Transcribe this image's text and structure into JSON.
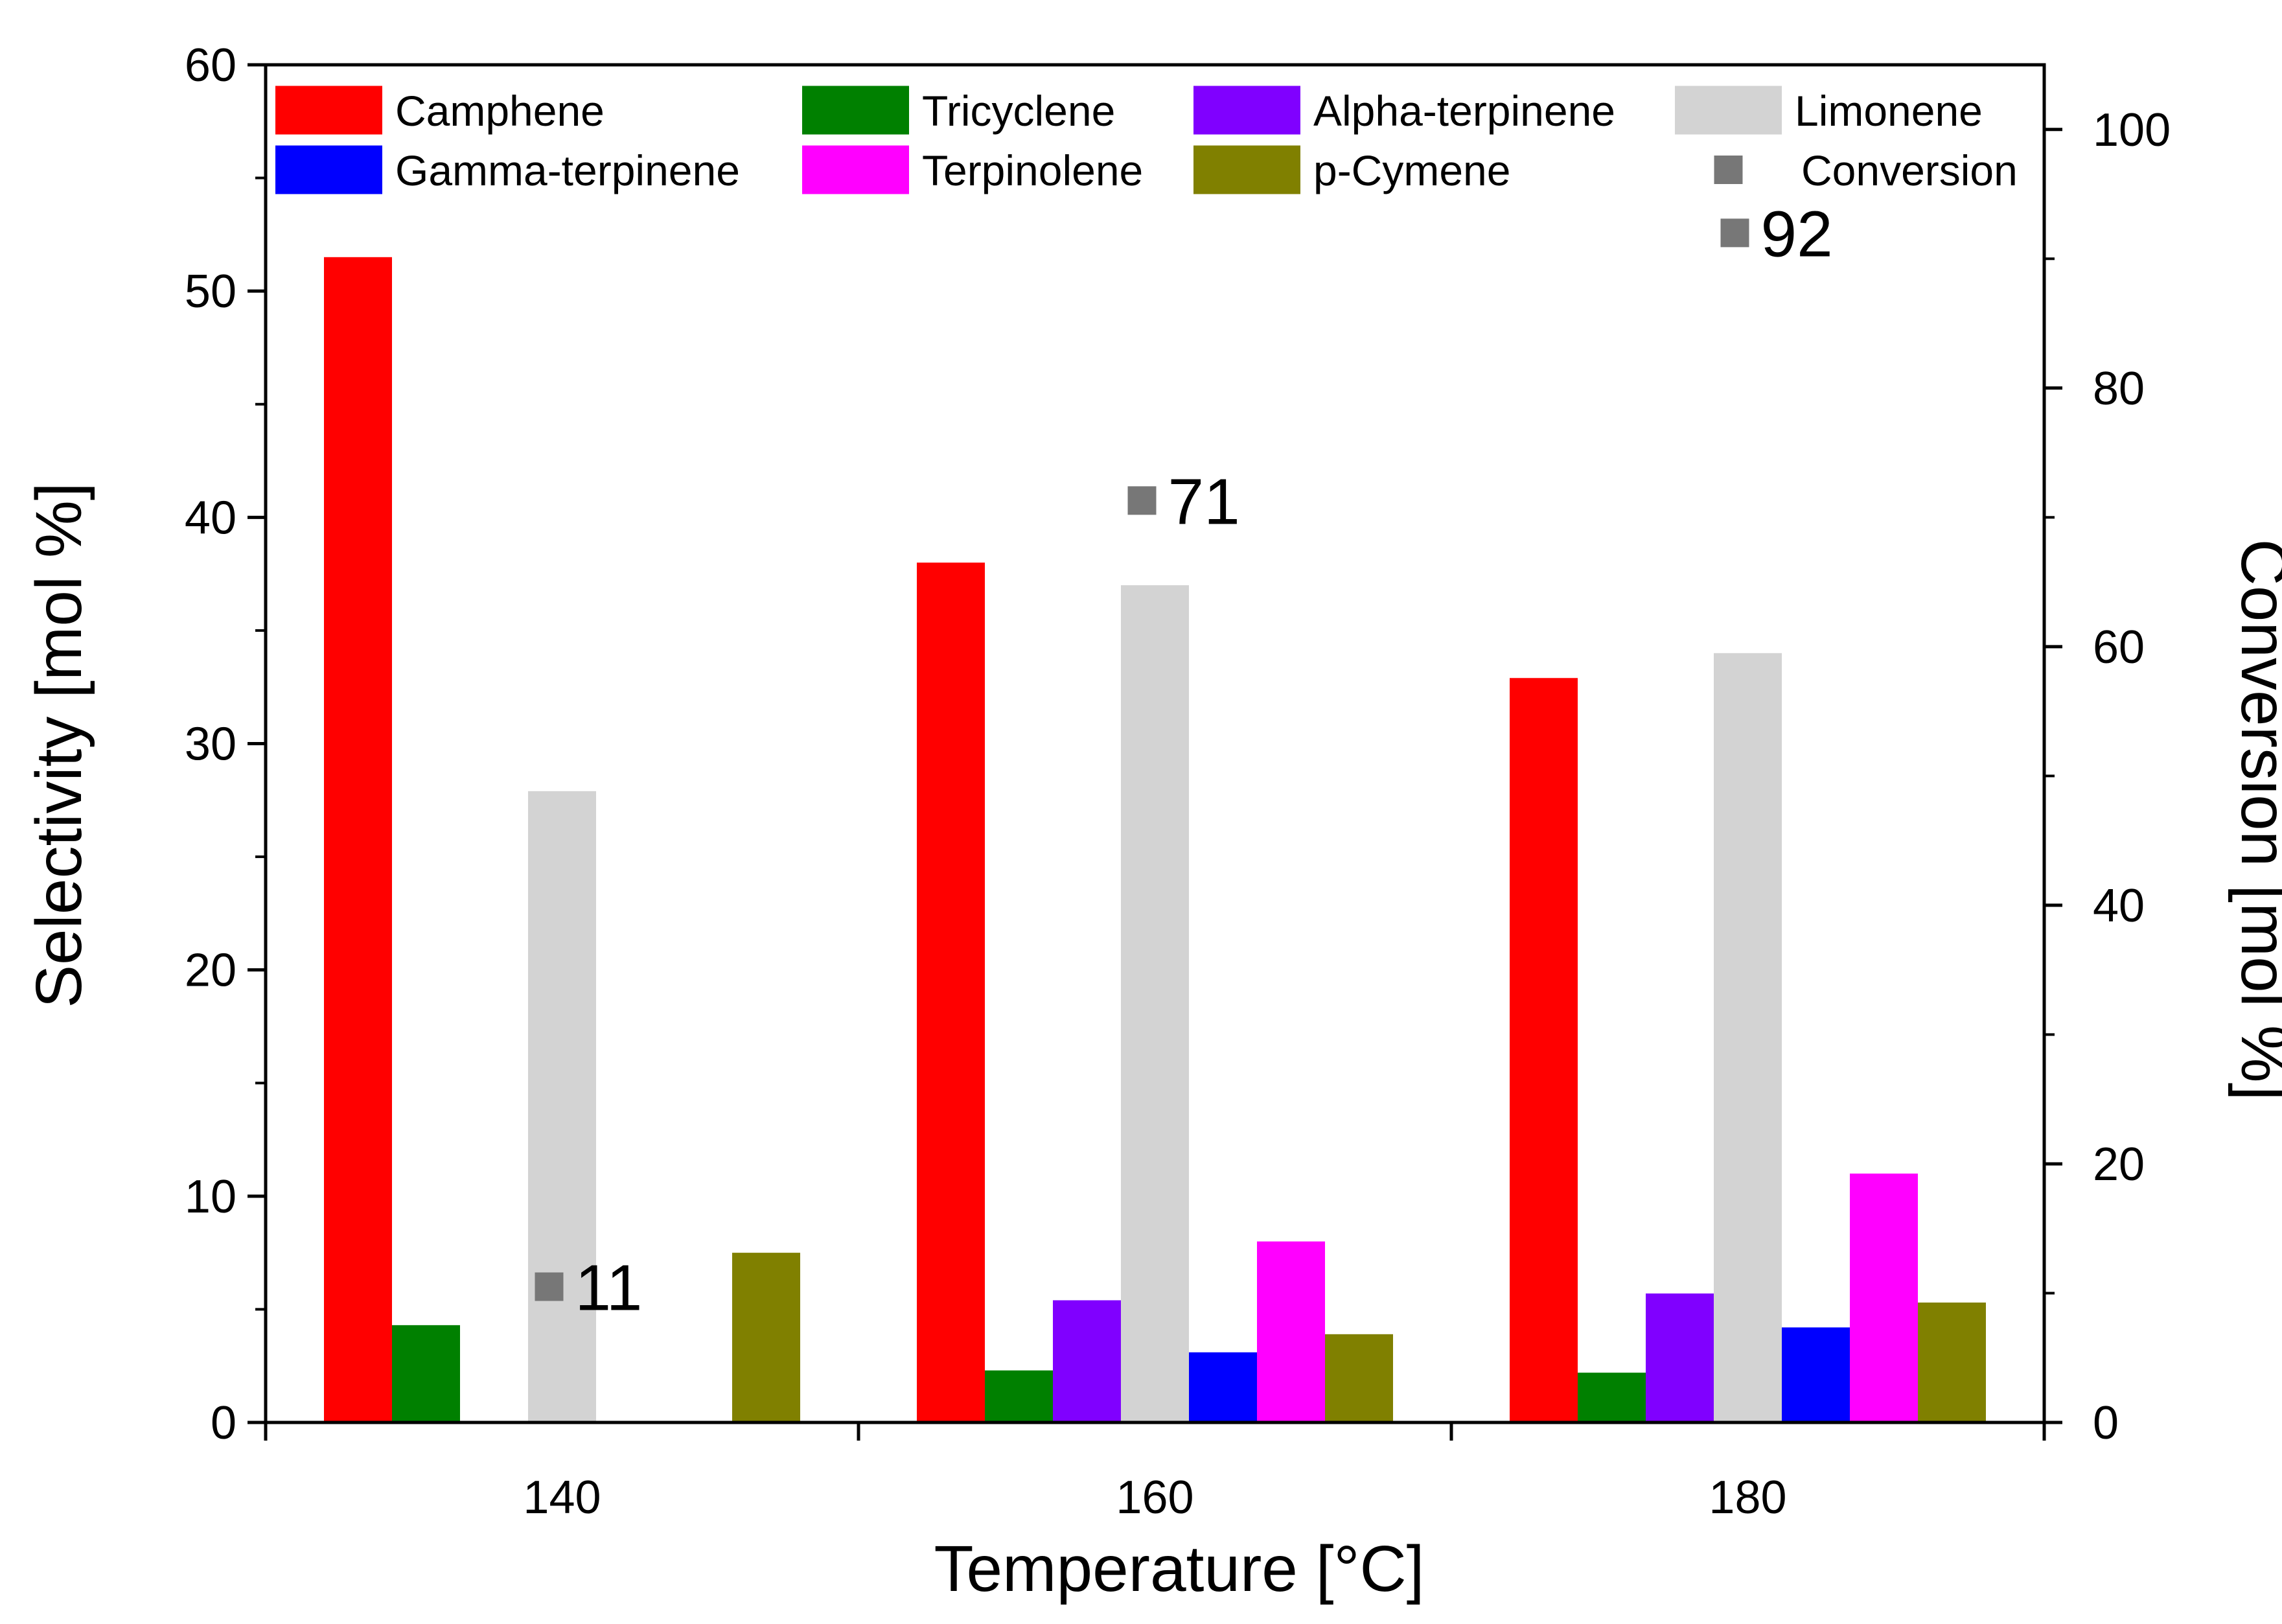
{
  "chart_data": {
    "type": "bar",
    "categories": [
      "140",
      "160",
      "180"
    ],
    "series": [
      {
        "name": "Camphene",
        "color": "#ff0000",
        "values": [
          51.5,
          38.0,
          32.9
        ]
      },
      {
        "name": "Tricyclene",
        "color": "#008000",
        "values": [
          4.3,
          2.3,
          2.2
        ]
      },
      {
        "name": "Alpha-terpinene",
        "color": "#8000ff",
        "values": [
          0,
          5.4,
          5.7
        ]
      },
      {
        "name": "Limonene",
        "color": "#d3d3d3",
        "values": [
          27.9,
          37.0,
          34.0
        ]
      },
      {
        "name": "Gamma-terpinene",
        "color": "#0000ff",
        "values": [
          0,
          3.1,
          4.2
        ]
      },
      {
        "name": "Terpinolene",
        "color": "#ff00ff",
        "values": [
          0,
          8.0,
          11.0
        ]
      },
      {
        "name": "p-Cymene",
        "color": "#808000",
        "values": [
          7.5,
          3.9,
          5.3
        ]
      }
    ],
    "conversion": {
      "name": "Conversion",
      "color": "#777777",
      "values": [
        10.5,
        71.3,
        92.0
      ],
      "labels": [
        "11",
        "71",
        "92"
      ]
    },
    "xlabel": "Temperature [°C]",
    "ylabel": "Selectivity [mol %]",
    "y2label": "Conversion [mol %]",
    "ylim": [
      0,
      60
    ],
    "y2lim": [
      0,
      105
    ],
    "yticks": [
      0,
      10,
      20,
      30,
      40,
      50,
      60
    ],
    "y2ticks": [
      0,
      20,
      40,
      60,
      80,
      100
    ],
    "legend": {
      "location": "top",
      "rows": [
        [
          "Camphene",
          "Tricyclene",
          "Alpha-terpinene",
          "Limonene"
        ],
        [
          "Gamma-terpinene",
          "Terpinolene",
          "p-Cymene",
          "Conversion"
        ]
      ]
    }
  }
}
